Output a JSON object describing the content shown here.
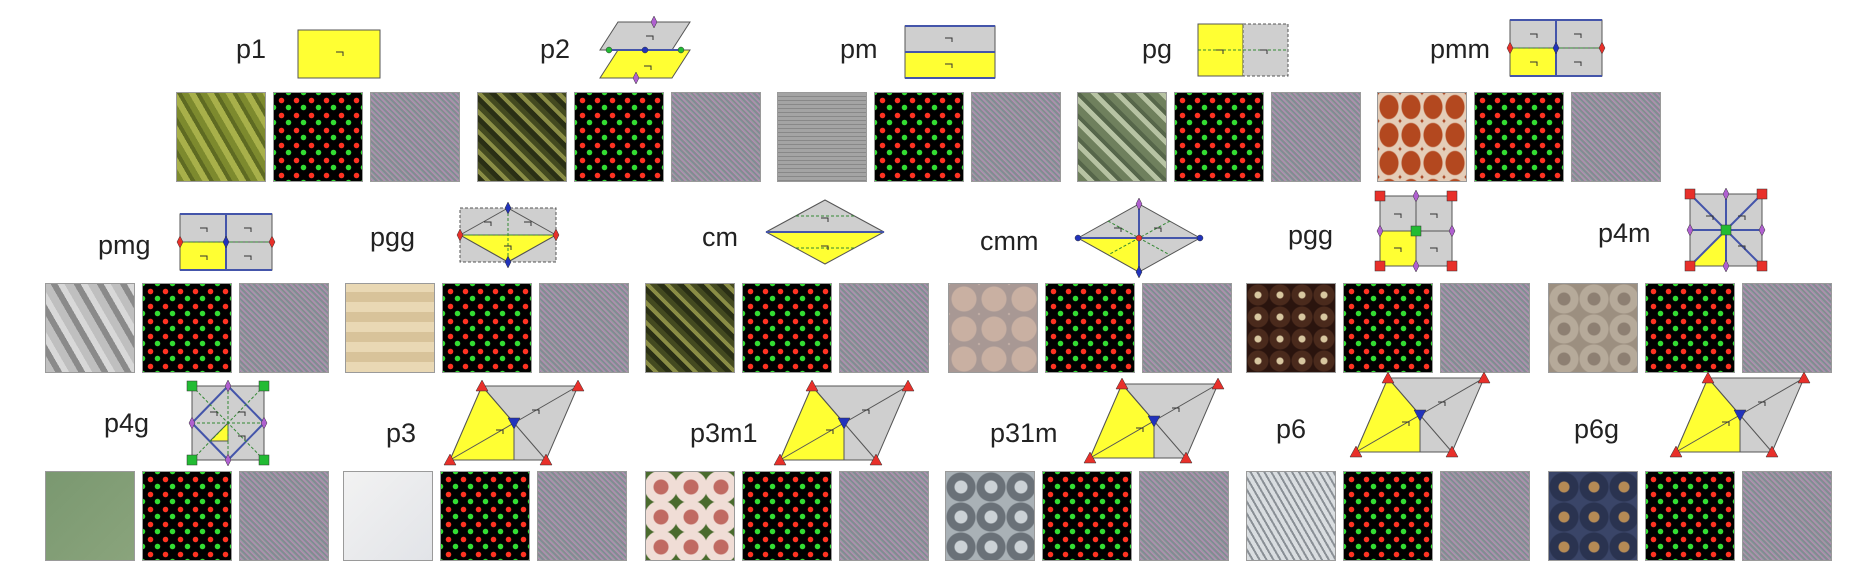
{
  "groups": [
    {
      "name": "p1",
      "diagram": "rect",
      "tiles": [
        "olive",
        "dots",
        "noise"
      ]
    },
    {
      "name": "p2",
      "diagram": "parallelogram",
      "tiles": [
        "darkolive",
        "dots",
        "noise"
      ]
    },
    {
      "name": "pm",
      "diagram": "rect-mirror",
      "tiles": [
        "gridgray",
        "dots",
        "noise"
      ]
    },
    {
      "name": "pg",
      "diagram": "rect-glide",
      "tiles": [
        "sage",
        "dots",
        "noise"
      ]
    },
    {
      "name": "pmm",
      "diagram": "rect-quad",
      "tiles": [
        "rust",
        "dots",
        "noise"
      ]
    },
    {
      "name": "pmg",
      "diagram": "rect-quad",
      "tiles": [
        "grayzig",
        "dots",
        "noise"
      ]
    },
    {
      "name": "pgg",
      "diagram": "rect-diamond",
      "tiles": [
        "beige",
        "dots",
        "noise"
      ]
    },
    {
      "name": "cm",
      "diagram": "rhombus-flat",
      "tiles": [
        "darkolive",
        "dots",
        "noise"
      ]
    },
    {
      "name": "cmm",
      "diagram": "rhombus",
      "tiles": [
        "pinkbeige",
        "dots",
        "noise"
      ]
    },
    {
      "name": "pgg",
      "diagram": "square-quad",
      "tiles": [
        "brownflower",
        "dots",
        "noise"
      ]
    },
    {
      "name": "p4m",
      "diagram": "square-diag",
      "tiles": [
        "taupe",
        "dots",
        "noise"
      ]
    },
    {
      "name": "p4g",
      "diagram": "square-rot",
      "tiles": [
        "green",
        "dots",
        "noise"
      ]
    },
    {
      "name": "p3",
      "diagram": "hex-rhomb",
      "tiles": [
        "white",
        "dots",
        "noise"
      ]
    },
    {
      "name": "p3m1",
      "diagram": "hex-rhomb",
      "tiles": [
        "pinkflower",
        "dots",
        "noise"
      ]
    },
    {
      "name": "p31m",
      "diagram": "hex-rhomb",
      "tiles": [
        "grayflower",
        "dots",
        "noise"
      ]
    },
    {
      "name": "p6",
      "diagram": "hex-rhomb",
      "tiles": [
        "starwhite",
        "dots",
        "noise"
      ]
    },
    {
      "name": "p6g",
      "diagram": "hex-rhomb",
      "tiles": [
        "navyflower",
        "dots",
        "noise"
      ]
    }
  ],
  "colors": {
    "yellow": "#ffff33",
    "gray": "#cfcfcf",
    "red": "#e8302a",
    "blue": "#2233bb",
    "green": "#22bb33",
    "purple": "#b060d0"
  }
}
